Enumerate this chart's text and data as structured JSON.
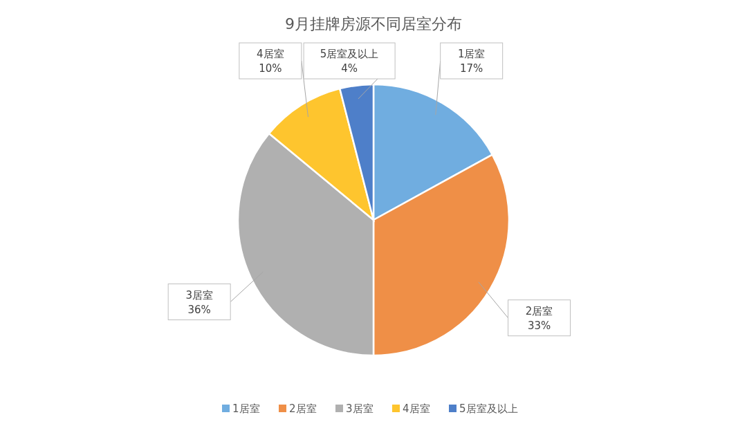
{
  "chart_data": {
    "type": "pie",
    "title": "9月挂牌房源不同居室分布",
    "categories": [
      "1居室",
      "2居室",
      "3居室",
      "4居室",
      "5居室及以上"
    ],
    "values": [
      17,
      33,
      36,
      10,
      4
    ],
    "colors": [
      "#70ade0",
      "#ef8f47",
      "#b0b0b0",
      "#fec52e",
      "#4e7fc9"
    ],
    "value_labels": [
      "17%",
      "33%",
      "36%",
      "10%",
      "4%"
    ],
    "legend": "bottom"
  }
}
